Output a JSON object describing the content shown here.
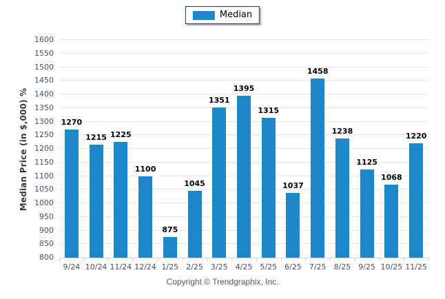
{
  "legend": {
    "items": [
      {
        "label": "Median",
        "color": "#1d87ca"
      }
    ],
    "position": "top-center"
  },
  "footer": {
    "copyright": "Copyright © Trendgraphix, Inc."
  },
  "colors": {
    "bar": "#1d87ca",
    "gridline": "#e9e9e9",
    "axis_line": "#ccd4dc",
    "tick_label": "#44546a",
    "value_label": "#000000",
    "legend_border": "#17375e",
    "footer_text": "#595959"
  },
  "chart_data": {
    "type": "bar",
    "title": "",
    "series_name": "Median",
    "categories": [
      "9/24",
      "10/24",
      "11/24",
      "12/24",
      "1/25",
      "2/25",
      "3/25",
      "4/25",
      "5/25",
      "6/25",
      "7/25",
      "8/25",
      "9/25",
      "10/25",
      "11/25"
    ],
    "values": [
      1270,
      1215,
      1225,
      1100,
      875,
      1045,
      1351,
      1395,
      1315,
      1037,
      1458,
      1238,
      1125,
      1068,
      1220
    ],
    "xlabel": "",
    "ylabel": "Median Price (in $,000) %",
    "ylim": [
      800,
      1600
    ],
    "ytick_step": 50,
    "grid": "horizontal",
    "legend_position": "top-center",
    "value_labels": "above-bars"
  }
}
